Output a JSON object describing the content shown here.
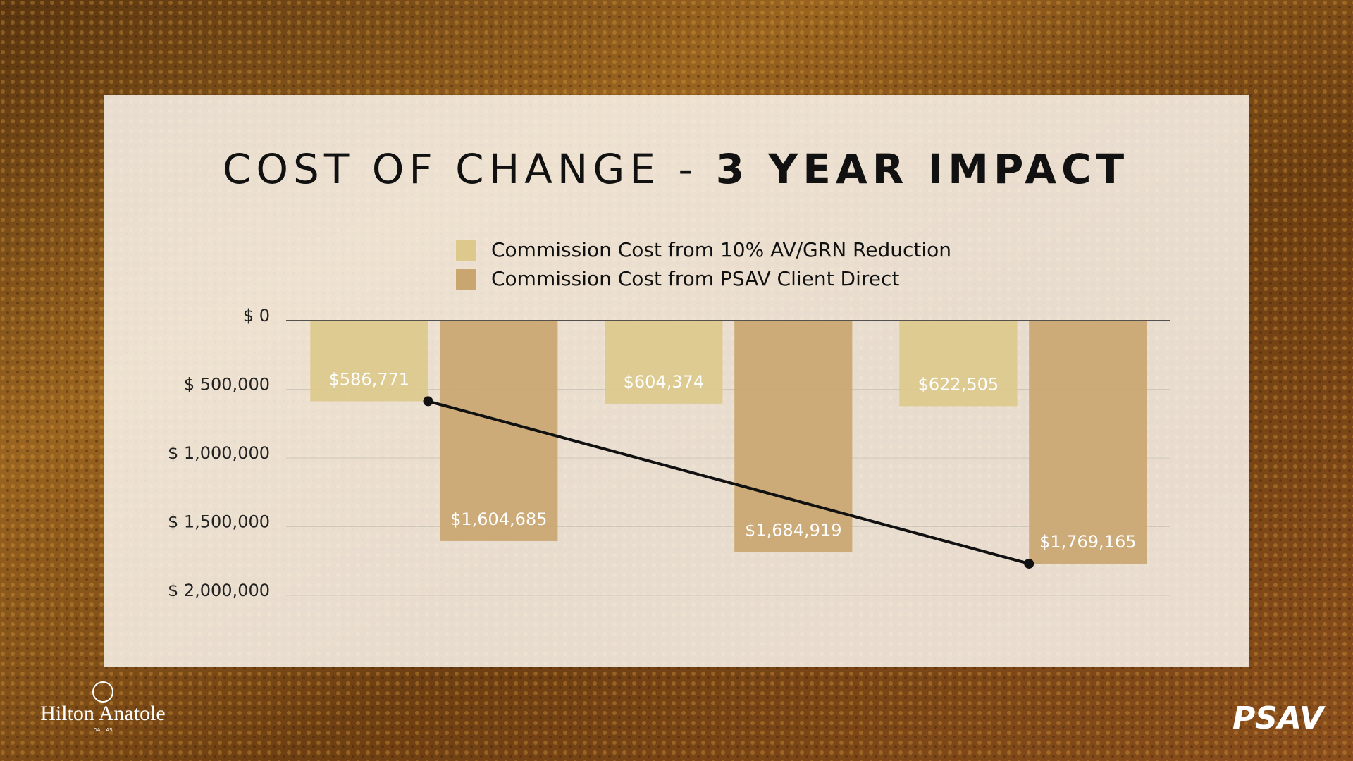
{
  "chart_data": {
    "type": "bar",
    "title": [
      "COST OF CHANGE - ",
      "3 YEAR IMPACT"
    ],
    "categories": [
      null,
      null,
      null
    ],
    "series": [
      {
        "name": "Commission Cost from 10% AV/GRN Reduction",
        "color": "#dcc98b",
        "values": [
          586771,
          604374,
          622505
        ],
        "value_labels": [
          "$586,771",
          "$604,374",
          "$622,505"
        ]
      },
      {
        "name": "Commission Cost from PSAV Client Direct",
        "color": "#c9a56f",
        "values": [
          1604685,
          1684919,
          1769165
        ],
        "value_labels": [
          "$1,604,685",
          "$1,684,919",
          "$1,769,165"
        ]
      }
    ],
    "ylim": [
      0,
      2000000
    ],
    "y_inverted": true,
    "yticks": [
      {
        "value": 0,
        "label": "$ 0"
      },
      {
        "value": 500000,
        "label": "$ 500,000"
      },
      {
        "value": 1000000,
        "label": "$ 1,000,000"
      },
      {
        "value": 1500000,
        "label": "$ 1,500,000"
      },
      {
        "value": 2000000,
        "label": "$ 2,000,000"
      }
    ],
    "grid": true,
    "legend": "top"
  },
  "branding": {
    "hotel": "Hilton Anatole",
    "city": "DALLAS",
    "company": "PSAV"
  }
}
